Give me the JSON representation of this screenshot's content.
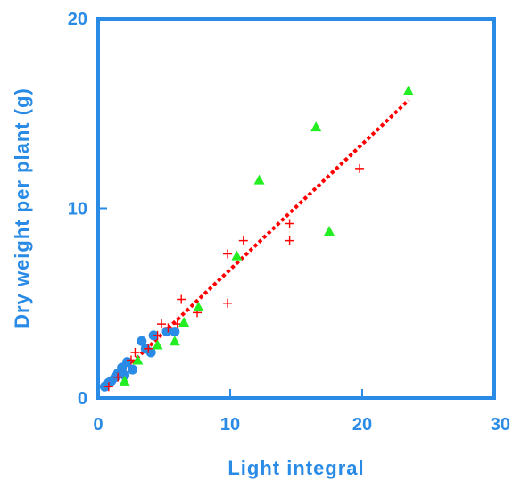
{
  "chart_data": {
    "type": "scatter",
    "title": "",
    "xlabel": "Light integral",
    "ylabel": "Dry weight per plant (g)",
    "xlim": [
      0,
      30
    ],
    "ylim": [
      0,
      20
    ],
    "x_ticks": [
      "0",
      "10",
      "20",
      "30"
    ],
    "y_ticks": [
      "0",
      "10",
      "20"
    ],
    "grid": false,
    "legend": "none",
    "colors": {
      "axis": "#2a8be6",
      "plus": "#ff0000",
      "triangle": "#22ee22",
      "circle": "#2a8be6",
      "fit": "#ff0000"
    },
    "series": [
      {
        "marker": "circle",
        "points": [
          [
            0.5,
            0.6
          ],
          [
            0.8,
            0.8
          ],
          [
            1.0,
            0.9
          ],
          [
            1.3,
            1.1
          ],
          [
            1.5,
            1.3
          ],
          [
            1.8,
            1.6
          ],
          [
            2.0,
            1.2
          ],
          [
            2.2,
            1.9
          ],
          [
            2.6,
            1.5
          ],
          [
            3.3,
            3.0
          ],
          [
            3.6,
            2.6
          ],
          [
            4.0,
            2.4
          ],
          [
            4.2,
            3.3
          ],
          [
            5.2,
            3.5
          ],
          [
            5.8,
            3.5
          ]
        ]
      },
      {
        "marker": "plus",
        "points": [
          [
            0.8,
            0.6
          ],
          [
            1.5,
            1.1
          ],
          [
            2.5,
            2.0
          ],
          [
            2.8,
            2.4
          ],
          [
            3.8,
            2.6
          ],
          [
            4.5,
            3.3
          ],
          [
            4.8,
            3.9
          ],
          [
            5.3,
            3.7
          ],
          [
            6.0,
            3.9
          ],
          [
            6.3,
            5.2
          ],
          [
            7.5,
            4.5
          ],
          [
            9.8,
            5.0
          ],
          [
            9.8,
            7.6
          ],
          [
            11.0,
            8.3
          ],
          [
            14.5,
            8.3
          ],
          [
            14.5,
            9.2
          ],
          [
            19.8,
            12.1
          ]
        ]
      },
      {
        "marker": "triangle",
        "points": [
          [
            2.0,
            0.9
          ],
          [
            3.0,
            2.0
          ],
          [
            4.5,
            2.8
          ],
          [
            5.8,
            3.0
          ],
          [
            6.5,
            4.0
          ],
          [
            7.6,
            4.8
          ],
          [
            10.5,
            7.5
          ],
          [
            12.2,
            11.5
          ],
          [
            16.5,
            14.3
          ],
          [
            17.5,
            8.8
          ],
          [
            23.5,
            16.2
          ]
        ]
      }
    ],
    "fit_line": {
      "style": "dotted",
      "from": [
        0.5,
        0.5
      ],
      "to": [
        23.5,
        15.7
      ]
    }
  }
}
